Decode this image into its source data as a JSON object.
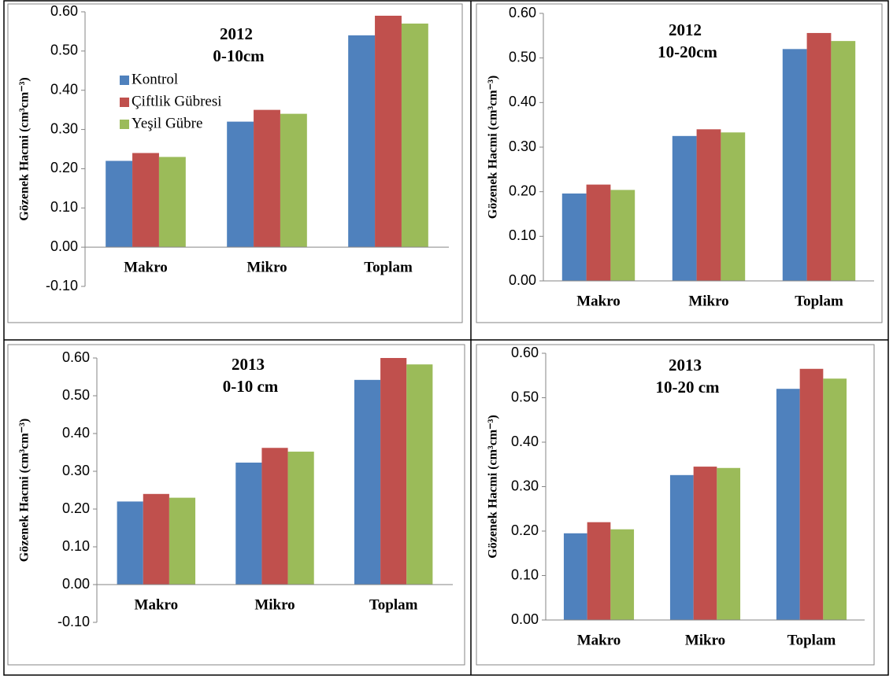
{
  "chart_data": [
    {
      "type": "bar",
      "title": "2012",
      "subtitle": "0-10cm",
      "y_label": "Gözenek Hacmi (cm³cm⁻³)",
      "categories": [
        "Makro",
        "Mikro",
        "Toplam"
      ],
      "series": [
        {
          "name": "Kontrol",
          "color": "#4f81bd",
          "values": [
            0.22,
            0.32,
            0.54
          ]
        },
        {
          "name": "Çiftlik Gübresi",
          "color": "#c0504d",
          "values": [
            0.24,
            0.35,
            0.59
          ]
        },
        {
          "name": "Yeşil Gübre",
          "color": "#9bbb59",
          "values": [
            0.23,
            0.34,
            0.57
          ]
        }
      ],
      "ylim": [
        -0.1,
        0.6
      ],
      "yticks": [
        {
          "value": -0.1,
          "label": "-0.10"
        },
        {
          "value": 0,
          "label": "0.00"
        },
        {
          "value": 0.1,
          "label": "0.10"
        },
        {
          "value": 0.2,
          "label": "0.20"
        },
        {
          "value": 0.3,
          "label": "0.30"
        },
        {
          "value": 0.4,
          "label": "0.40"
        },
        {
          "value": 0.5,
          "label": "0.50"
        },
        {
          "value": 0.6,
          "label": "0.60"
        }
      ],
      "legend": "upper left"
    },
    {
      "type": "bar",
      "title": "2012",
      "subtitle": "10-20cm",
      "y_label": "Gözenek Hacmi (cm³cm⁻³)",
      "categories": [
        "Makro",
        "Mikro",
        "Toplam"
      ],
      "series": [
        {
          "name": "Kontrol",
          "color": "#4f81bd",
          "values": [
            0.196,
            0.325,
            0.52
          ]
        },
        {
          "name": "Çiftlik Gübresi",
          "color": "#c0504d",
          "values": [
            0.216,
            0.34,
            0.556
          ]
        },
        {
          "name": "Yeşil Gübre",
          "color": "#9bbb59",
          "values": [
            0.204,
            0.333,
            0.538
          ]
        }
      ],
      "ylim": [
        0,
        0.6
      ],
      "yticks": [
        {
          "value": 0,
          "label": "0.00"
        },
        {
          "value": 0.1,
          "label": "0.10"
        },
        {
          "value": 0.2,
          "label": "0.20"
        },
        {
          "value": 0.3,
          "label": "0.30"
        },
        {
          "value": 0.4,
          "label": "0.40"
        },
        {
          "value": 0.5,
          "label": "0.50"
        },
        {
          "value": 0.6,
          "label": "0.60"
        }
      ]
    },
    {
      "type": "bar",
      "title": "2013",
      "subtitle": "0-10 cm",
      "y_label": "Gözenek Hacmi (cm³cm⁻³)",
      "categories": [
        "Makro",
        "Mikro",
        "Toplam"
      ],
      "series": [
        {
          "name": "Kontrol",
          "color": "#4f81bd",
          "values": [
            0.22,
            0.323,
            0.542
          ]
        },
        {
          "name": "Çiftlik Gübresi",
          "color": "#c0504d",
          "values": [
            0.24,
            0.362,
            0.6
          ]
        },
        {
          "name": "Yeşil Gübre",
          "color": "#9bbb59",
          "values": [
            0.23,
            0.352,
            0.583
          ]
        }
      ],
      "ylim": [
        -0.1,
        0.6
      ],
      "yticks": [
        {
          "value": -0.1,
          "label": "-0.10"
        },
        {
          "value": 0,
          "label": "0.00"
        },
        {
          "value": 0.1,
          "label": "0.10"
        },
        {
          "value": 0.2,
          "label": "0.20"
        },
        {
          "value": 0.3,
          "label": "0.30"
        },
        {
          "value": 0.4,
          "label": "0.40"
        },
        {
          "value": 0.5,
          "label": "0.50"
        },
        {
          "value": 0.6,
          "label": "0.60"
        }
      ]
    },
    {
      "type": "bar",
      "title": "2013",
      "subtitle": "10-20 cm",
      "y_label": "Gözenek Hacmi (cm³cm⁻³)",
      "categories": [
        "Makro",
        "Mikro",
        "Toplam"
      ],
      "series": [
        {
          "name": "Kontrol",
          "color": "#4f81bd",
          "values": [
            0.195,
            0.326,
            0.52
          ]
        },
        {
          "name": "Çiftlik Gübresi",
          "color": "#c0504d",
          "values": [
            0.22,
            0.345,
            0.565
          ]
        },
        {
          "name": "Yeşil Gübre",
          "color": "#9bbb59",
          "values": [
            0.204,
            0.342,
            0.543
          ]
        }
      ],
      "ylim": [
        0,
        0.6
      ],
      "yticks": [
        {
          "value": 0,
          "label": "0.00"
        },
        {
          "value": 0.1,
          "label": "0.10"
        },
        {
          "value": 0.2,
          "label": "0.20"
        },
        {
          "value": 0.3,
          "label": "0.30"
        },
        {
          "value": 0.4,
          "label": "0.40"
        },
        {
          "value": 0.5,
          "label": "0.50"
        },
        {
          "value": 0.6,
          "label": "0.60"
        }
      ]
    }
  ]
}
